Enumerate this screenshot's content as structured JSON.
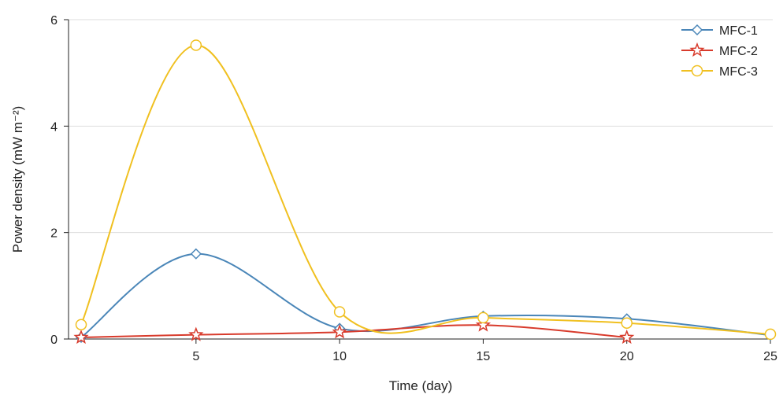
{
  "chart_data": {
    "type": "line",
    "xlabel": "Time (day)",
    "ylabel": "Power density (mW m⁻²)",
    "xlim": [
      1,
      25
    ],
    "ylim": [
      0,
      6
    ],
    "xticks": [
      5,
      10,
      15,
      20,
      25
    ],
    "yticks": [
      0,
      2,
      4,
      6
    ],
    "grid": "horizontal",
    "legend_position": "top-right",
    "smooth": true,
    "series": [
      {
        "name": "MFC-1",
        "color": "#4a86b8",
        "marker": "diamond",
        "x": [
          1,
          5,
          10,
          15,
          20,
          25
        ],
        "y": [
          0.03,
          1.6,
          0.2,
          0.43,
          0.38,
          0.07
        ]
      },
      {
        "name": "MFC-2",
        "color": "#d83b2c",
        "marker": "star",
        "x": [
          1,
          5,
          10,
          15,
          20
        ],
        "y": [
          0.03,
          0.08,
          0.13,
          0.26,
          0.03
        ]
      },
      {
        "name": "MFC-3",
        "color": "#f0c020",
        "marker": "circle",
        "x": [
          1,
          5,
          10,
          15,
          20,
          25
        ],
        "y": [
          0.27,
          5.52,
          0.51,
          0.4,
          0.3,
          0.09
        ]
      }
    ]
  }
}
